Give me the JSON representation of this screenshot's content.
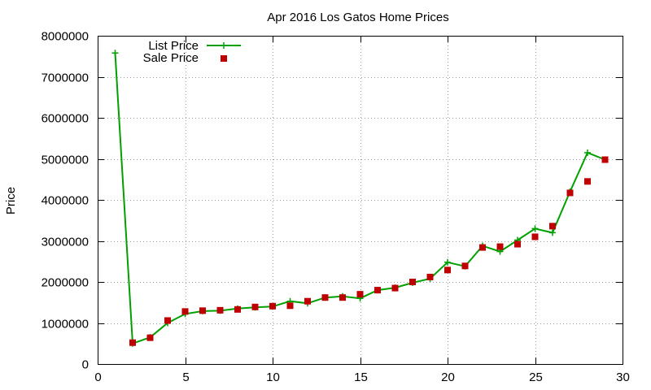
{
  "chart_data": {
    "type": "line",
    "title": "Apr 2016 Los Gatos Home Prices",
    "xlabel": "",
    "ylabel": "Price",
    "xlim": [
      0,
      30
    ],
    "ylim": [
      0,
      8000000
    ],
    "x_ticks": [
      0,
      5,
      10,
      15,
      20,
      25,
      30
    ],
    "y_ticks": [
      0,
      1000000,
      2000000,
      3000000,
      4000000,
      5000000,
      6000000,
      7000000,
      8000000
    ],
    "grid": true,
    "legend_position": "top-left",
    "series": [
      {
        "name": "List Price",
        "style": "line+crosses",
        "color": "#00a000",
        "x": [
          1,
          2,
          3,
          4,
          5,
          6,
          7,
          8,
          9,
          10,
          11,
          12,
          13,
          14,
          15,
          16,
          17,
          18,
          19,
          20,
          21,
          22,
          23,
          24,
          25,
          26,
          27,
          28,
          29
        ],
        "y": [
          7580000,
          500000,
          650000,
          1000000,
          1220000,
          1290000,
          1300000,
          1350000,
          1380000,
          1400000,
          1530000,
          1480000,
          1620000,
          1650000,
          1600000,
          1800000,
          1860000,
          1980000,
          2080000,
          2480000,
          2380000,
          2880000,
          2740000,
          3020000,
          3300000,
          3200000,
          4200000,
          5150000,
          4980000
        ]
      },
      {
        "name": "Sale Price",
        "style": "squares",
        "color": "#c00000",
        "x": [
          2,
          3,
          4,
          5,
          6,
          7,
          8,
          9,
          10,
          11,
          12,
          13,
          14,
          15,
          16,
          17,
          18,
          19,
          20,
          21,
          22,
          23,
          24,
          25,
          26,
          27,
          28,
          29
        ],
        "y": [
          520000,
          640000,
          1060000,
          1280000,
          1300000,
          1310000,
          1330000,
          1390000,
          1410000,
          1420000,
          1530000,
          1620000,
          1620000,
          1700000,
          1800000,
          1850000,
          2000000,
          2120000,
          2290000,
          2390000,
          2840000,
          2860000,
          2920000,
          3100000,
          3360000,
          4170000,
          4450000,
          4980000
        ]
      }
    ]
  }
}
